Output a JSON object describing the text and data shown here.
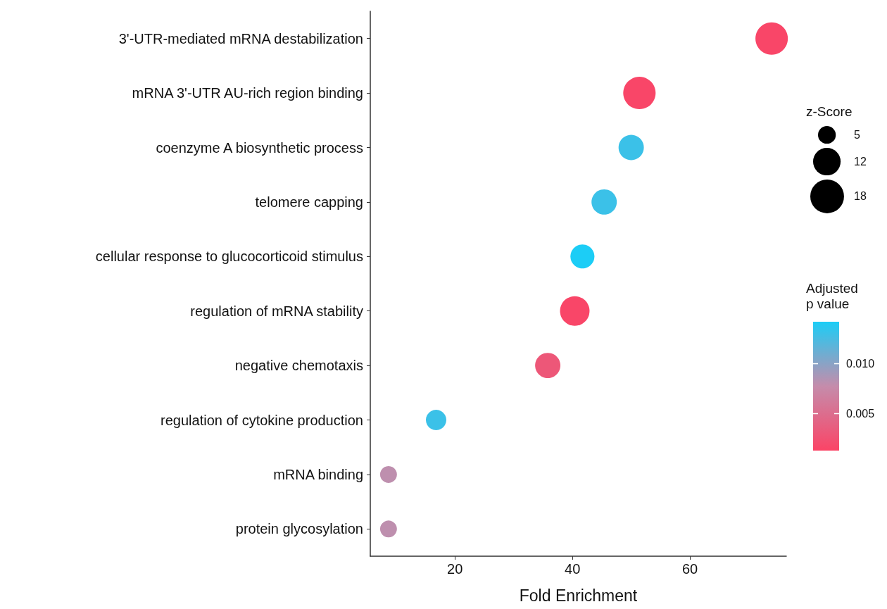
{
  "chart_data": {
    "type": "bubble",
    "categories": [
      "3'-UTR-mediated mRNA destabilization",
      "mRNA 3'-UTR AU-rich region binding",
      "coenzyme A biosynthetic process",
      "telomere capping",
      "cellular response to glucocorticoid stimulus",
      "regulation of mRNA stability",
      "negative chemotaxis",
      "regulation of cytokine production",
      "mRNA binding",
      "protein glycosylation"
    ],
    "values": [
      73.9,
      51.4,
      50.0,
      45.4,
      41.7,
      40.4,
      35.8,
      16.8,
      8.7,
      8.7
    ],
    "sizes": [
      16.6,
      16.6,
      10.1,
      10.1,
      9.1,
      13.8,
      10.1,
      6.6,
      4.5,
      4.5
    ],
    "cvalues": [
      0.0015,
      0.0015,
      0.013,
      0.013,
      0.0142,
      0.0015,
      0.003,
      0.013,
      0.008,
      0.008
    ],
    "orientation": "horizontal",
    "xlabel": "Fold Enrichment",
    "xlim": [
      5.6,
      76.4
    ],
    "xticks": [
      20,
      40,
      60
    ],
    "legend_title": "z-Score",
    "size_legend": [
      5,
      12,
      18
    ],
    "clabel": "Adjusted\np value",
    "clim": [
      0.0013,
      0.0142
    ],
    "cticks": [
      {
        "value": 0.005,
        "label": "0.005"
      },
      {
        "value": 0.01,
        "label": "0.010"
      }
    ],
    "grid": false,
    "marker": "circle"
  }
}
